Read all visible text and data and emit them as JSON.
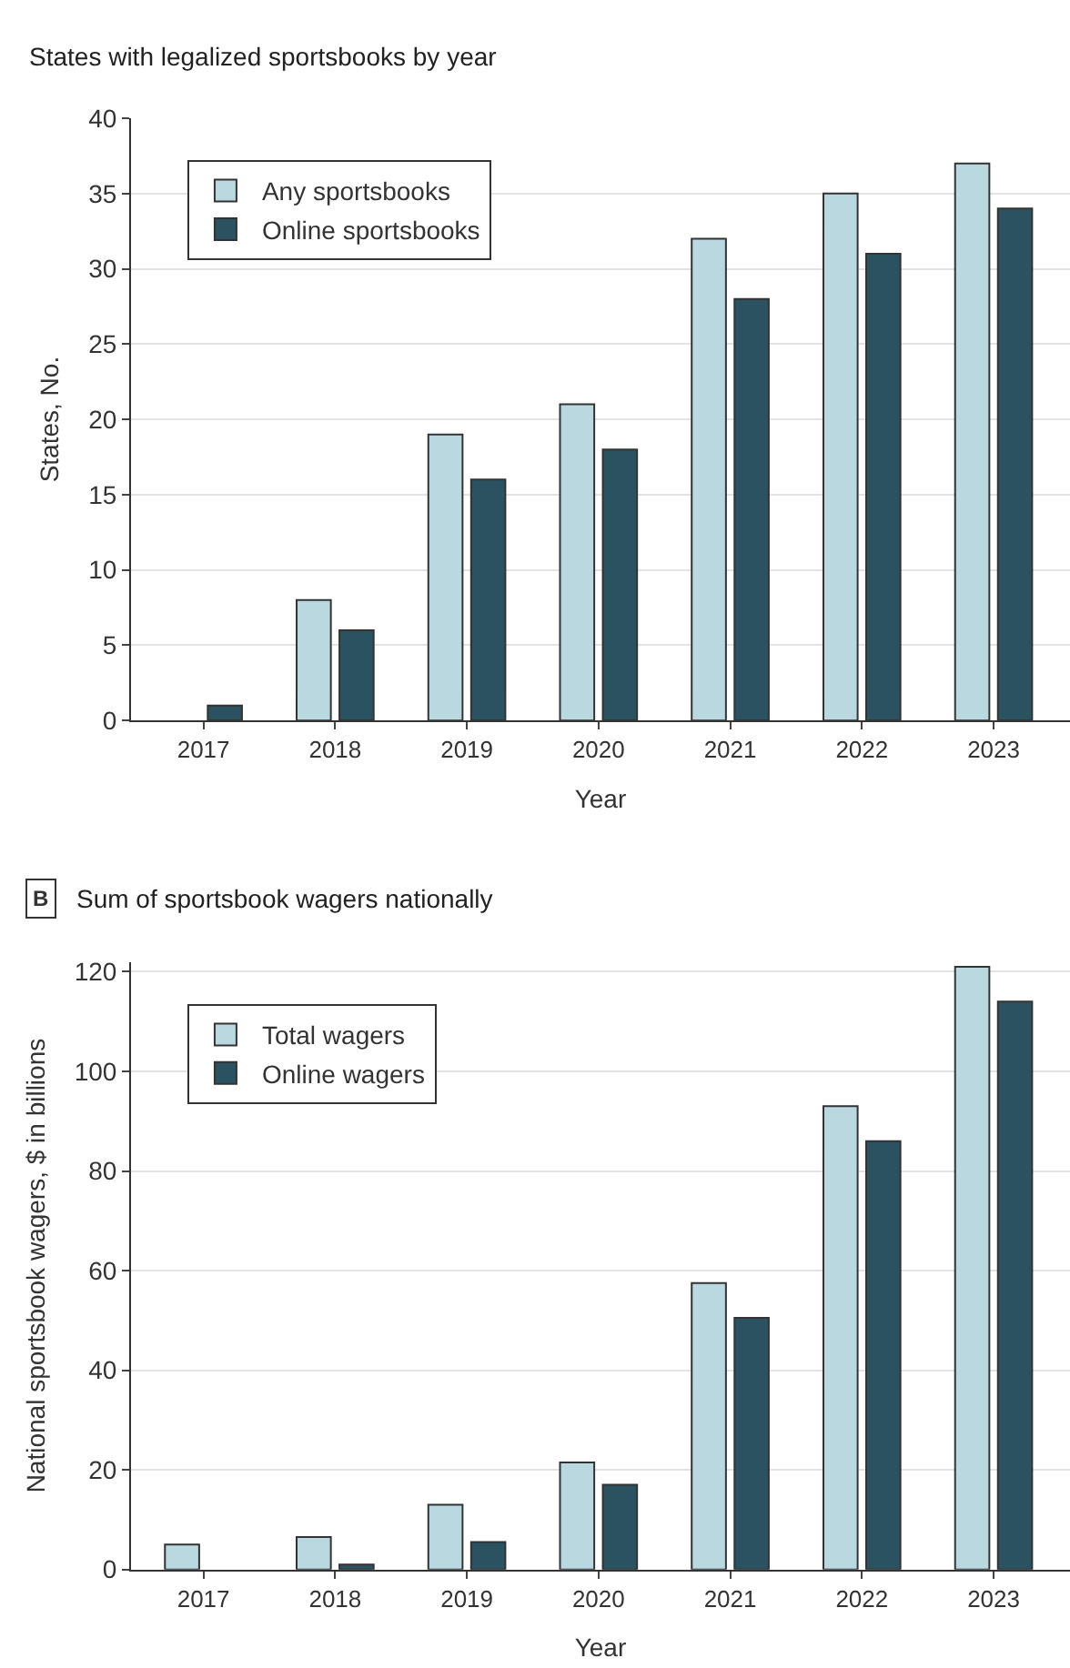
{
  "chart_data": [
    {
      "type": "bar",
      "title": "States with legalized sportsbooks by year",
      "xlabel": "Year",
      "ylabel": "States, No.",
      "categories": [
        "2017",
        "2018",
        "2019",
        "2020",
        "2021",
        "2022",
        "2023"
      ],
      "series": [
        {
          "name": "Any sportsbooks",
          "color": "#b9d8e0",
          "values": [
            null,
            8,
            19,
            21,
            32,
            35,
            37
          ]
        },
        {
          "name": "Online sportsbooks",
          "color": "#2b5260",
          "values": [
            1,
            6,
            16,
            18,
            28,
            31,
            34
          ]
        }
      ],
      "ylim": [
        0,
        40
      ],
      "yticks": [
        0,
        5,
        10,
        15,
        20,
        25,
        30,
        35,
        40
      ],
      "grid": "y",
      "legend": "top left"
    },
    {
      "type": "bar",
      "title": "Sum of sportsbook wagers nationally",
      "annotations": [
        "B"
      ],
      "xlabel": "Year",
      "ylabel": "National sportsbook wagers, $ in billions",
      "categories": [
        "2017",
        "2018",
        "2019",
        "2020",
        "2021",
        "2022",
        "2023"
      ],
      "series": [
        {
          "name": "Total wagers",
          "color": "#b9d8e0",
          "values": [
            5,
            6.5,
            13,
            21.5,
            57.5,
            93,
            121
          ]
        },
        {
          "name": "Online wagers",
          "color": "#2b5260",
          "values": [
            null,
            1,
            5.5,
            17,
            50.5,
            86,
            114
          ]
        }
      ],
      "ylim": [
        0,
        122
      ],
      "yticks": [
        0,
        20,
        40,
        60,
        80,
        100,
        120
      ],
      "grid": "y",
      "legend": "top left"
    }
  ]
}
